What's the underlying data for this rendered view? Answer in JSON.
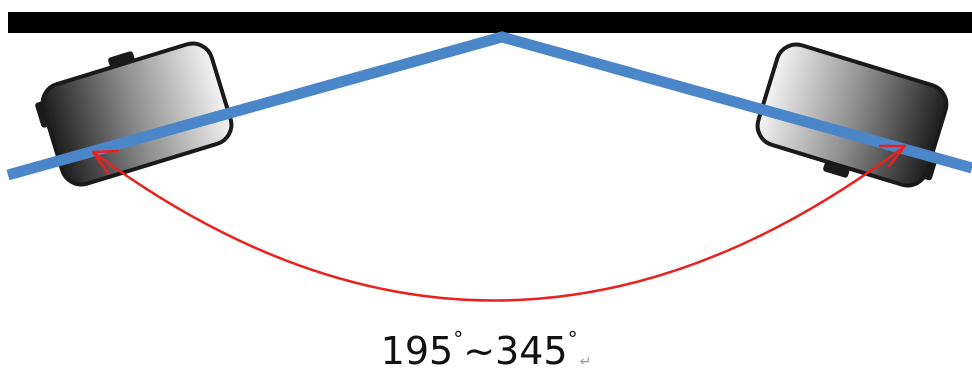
{
  "diagram": {
    "range_text": {
      "min": "195",
      "separator": "~",
      "max": "345",
      "degree_symbol": "°",
      "return_mark": "↵"
    },
    "colors": {
      "ceiling": "#000000",
      "sight_lines": "#4a86c8",
      "arc": "#e8231f",
      "projector_outline": "#1a1a1a"
    }
  }
}
